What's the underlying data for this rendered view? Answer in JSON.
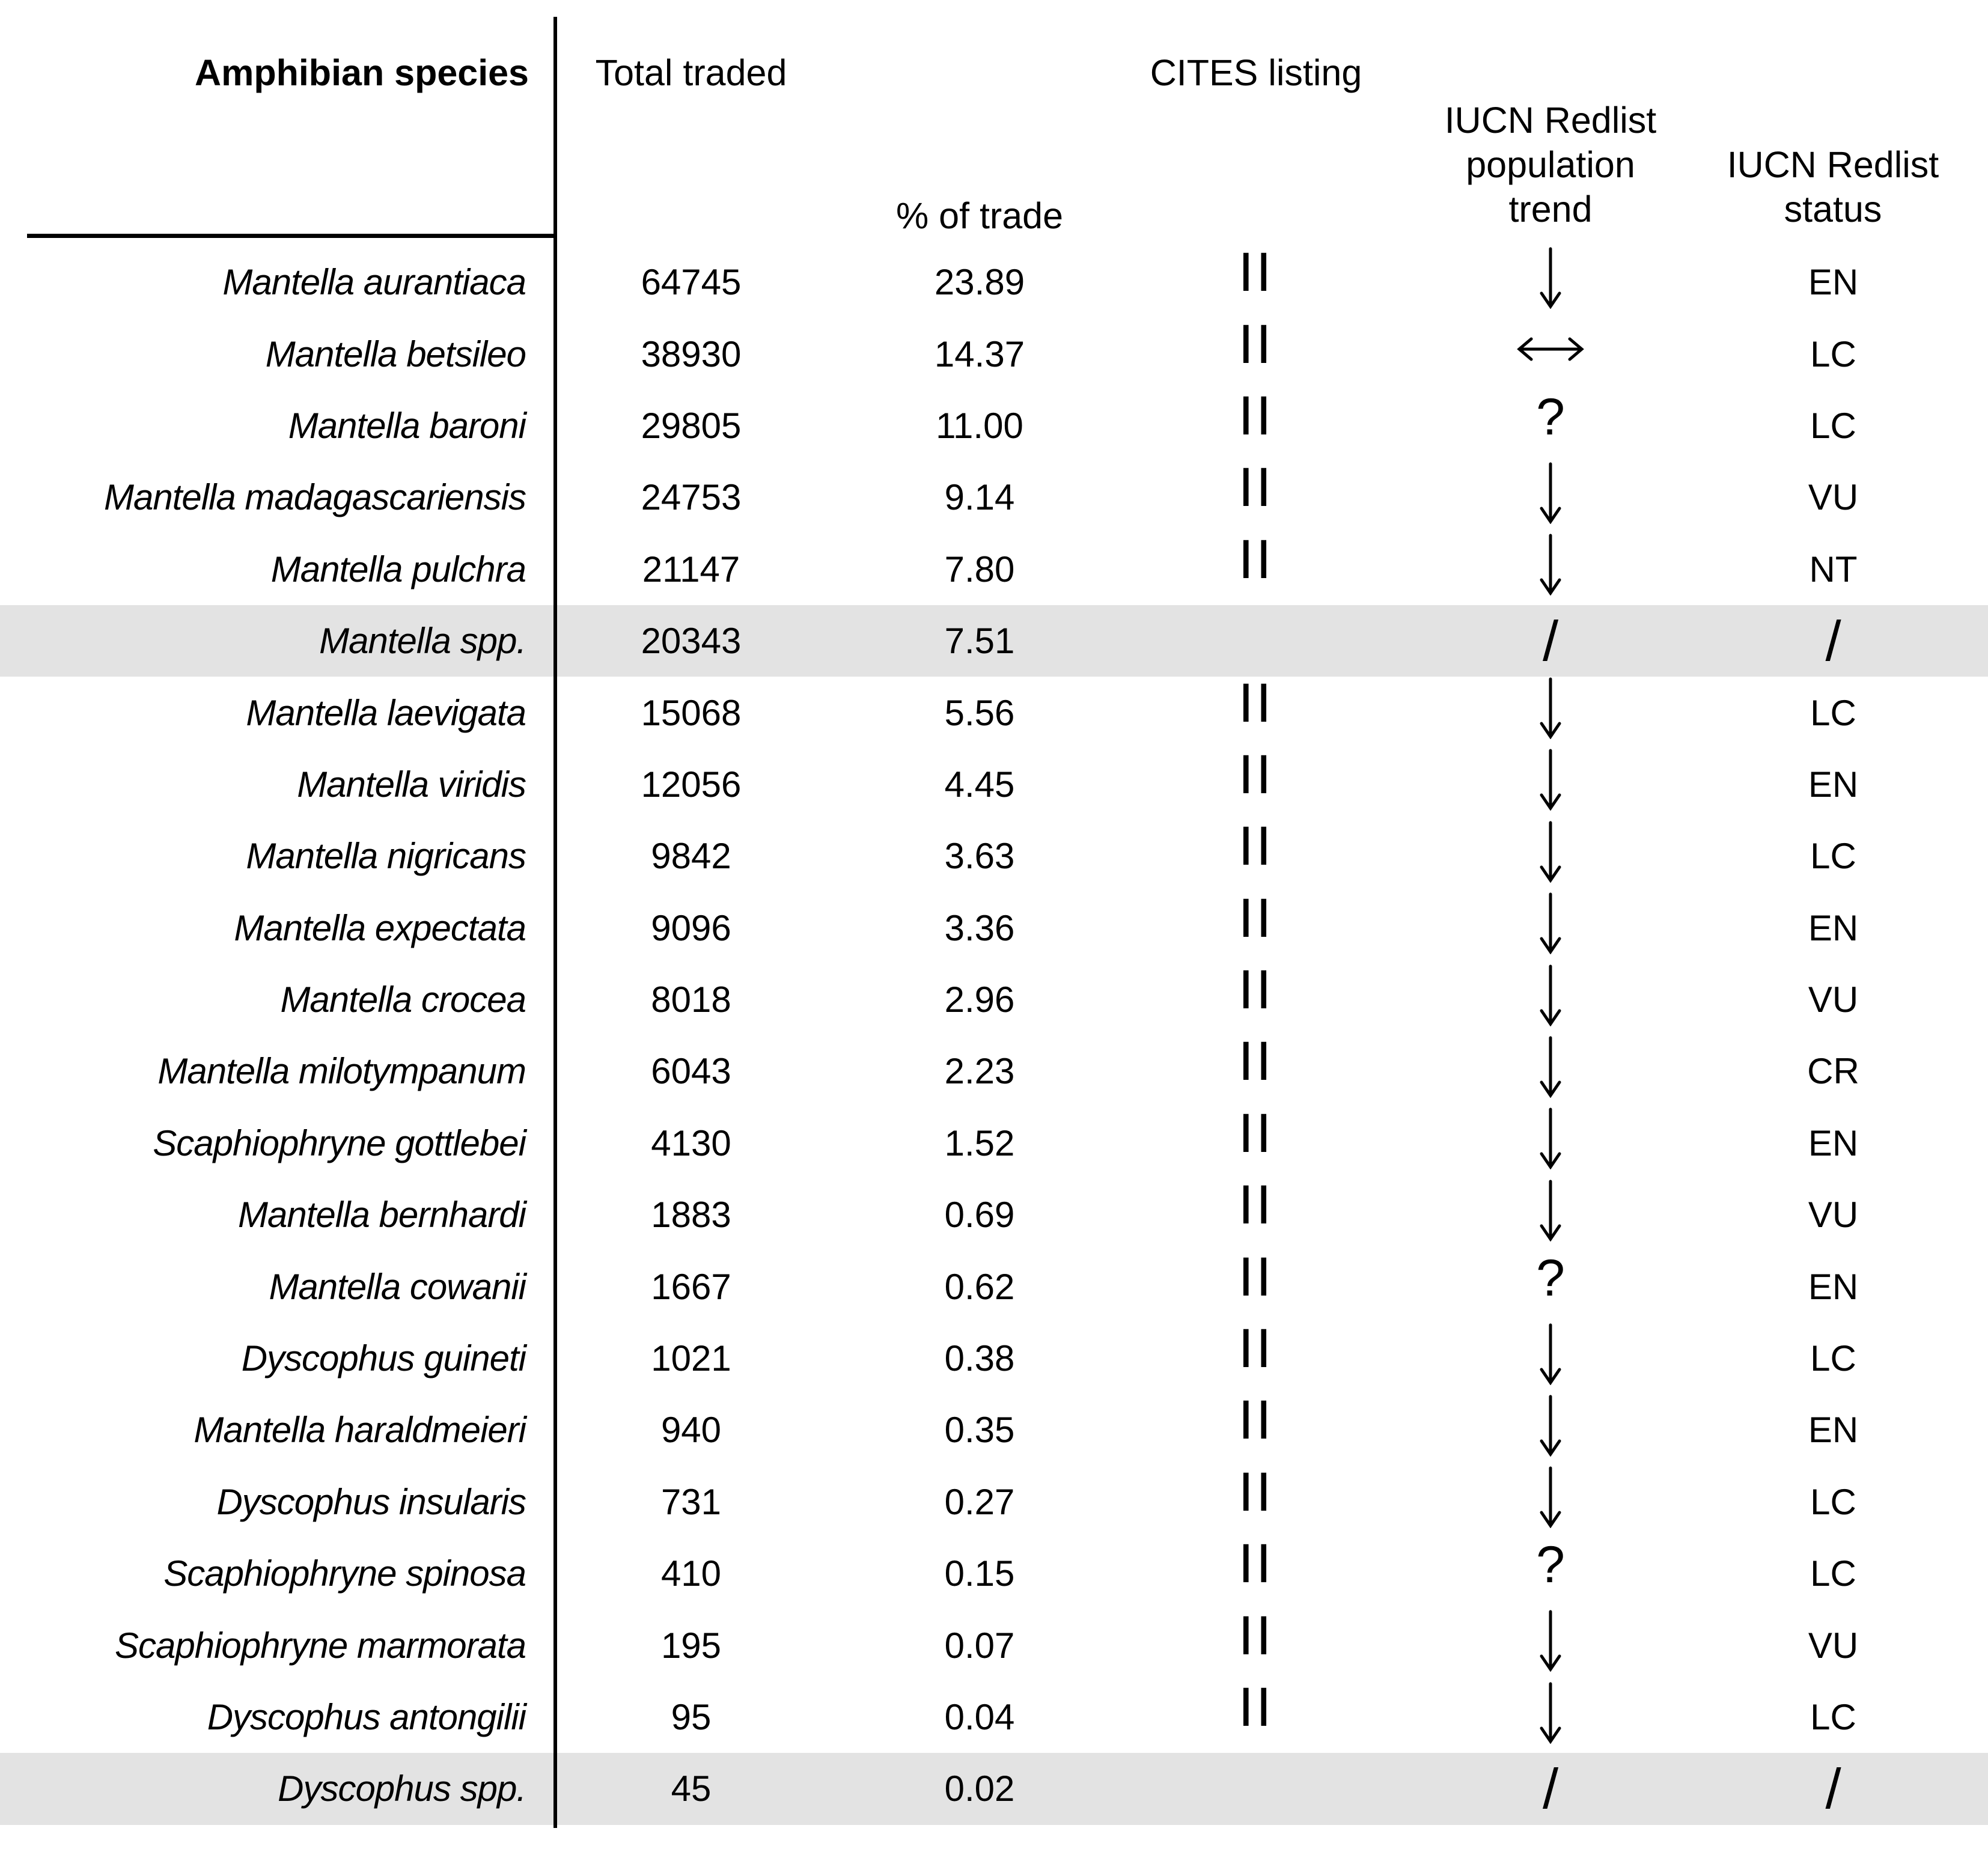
{
  "table": {
    "headers": {
      "species": "Amphibian species",
      "total_traded": "Total traded",
      "pct_of_trade": "% of trade",
      "cites": "CITES listing",
      "trend_lines": [
        "IUCN Redlist",
        "population",
        "trend"
      ],
      "status_lines": [
        "IUCN Redlist",
        "status"
      ]
    },
    "trend_glyphs": {
      "down": "↓",
      "stable": "↔",
      "unknown": "?",
      "na": "/"
    },
    "rows": [
      {
        "species": "Mantella aurantiaca",
        "total": "64745",
        "pct": "23.89",
        "cites": "II",
        "trend": "down",
        "status": "EN",
        "shaded": false
      },
      {
        "species": "Mantella betsileo",
        "total": "38930",
        "pct": "14.37",
        "cites": "II",
        "trend": "stable",
        "status": "LC",
        "shaded": false
      },
      {
        "species": "Mantella baroni",
        "total": "29805",
        "pct": "11.00",
        "cites": "II",
        "trend": "unknown",
        "status": "LC",
        "shaded": false
      },
      {
        "species": "Mantella madagascariensis",
        "total": "24753",
        "pct": "9.14",
        "cites": "II",
        "trend": "down",
        "status": "VU",
        "shaded": false
      },
      {
        "species": "Mantella pulchra",
        "total": "21147",
        "pct": "7.80",
        "cites": "II",
        "trend": "down",
        "status": "NT",
        "shaded": false
      },
      {
        "species": "Mantella spp.",
        "total": "20343",
        "pct": "7.51",
        "cites": "",
        "trend": "na",
        "status": "/",
        "shaded": true
      },
      {
        "species": "Mantella laevigata",
        "total": "15068",
        "pct": "5.56",
        "cites": "II",
        "trend": "down",
        "status": "LC",
        "shaded": false
      },
      {
        "species": "Mantella viridis",
        "total": "12056",
        "pct": "4.45",
        "cites": "II",
        "trend": "down",
        "status": "EN",
        "shaded": false
      },
      {
        "species": "Mantella nigricans",
        "total": "9842",
        "pct": "3.63",
        "cites": "II",
        "trend": "down",
        "status": "LC",
        "shaded": false
      },
      {
        "species": "Mantella expectata",
        "total": "9096",
        "pct": "3.36",
        "cites": "II",
        "trend": "down",
        "status": "EN",
        "shaded": false
      },
      {
        "species": "Mantella crocea",
        "total": "8018",
        "pct": "2.96",
        "cites": "II",
        "trend": "down",
        "status": "VU",
        "shaded": false
      },
      {
        "species": "Mantella milotympanum",
        "total": "6043",
        "pct": "2.23",
        "cites": "II",
        "trend": "down",
        "status": "CR",
        "shaded": false
      },
      {
        "species": "Scaphiophryne gottlebei",
        "total": "4130",
        "pct": "1.52",
        "cites": "II",
        "trend": "down",
        "status": "EN",
        "shaded": false
      },
      {
        "species": "Mantella bernhardi",
        "total": "1883",
        "pct": "0.69",
        "cites": "II",
        "trend": "down",
        "status": "VU",
        "shaded": false
      },
      {
        "species": "Mantella cowanii",
        "total": "1667",
        "pct": "0.62",
        "cites": "II",
        "trend": "unknown",
        "status": "EN",
        "shaded": false
      },
      {
        "species": "Dyscophus guineti",
        "total": "1021",
        "pct": "0.38",
        "cites": "II",
        "trend": "down",
        "status": "LC",
        "shaded": false
      },
      {
        "species": "Mantella haraldmeieri",
        "total": "940",
        "pct": "0.35",
        "cites": "II",
        "trend": "down",
        "status": "EN",
        "shaded": false
      },
      {
        "species": "Dyscophus insularis",
        "total": "731",
        "pct": "0.27",
        "cites": "II",
        "trend": "down",
        "status": "LC",
        "shaded": false
      },
      {
        "species": "Scaphiophryne spinosa",
        "total": "410",
        "pct": "0.15",
        "cites": "II",
        "trend": "unknown",
        "status": "LC",
        "shaded": false
      },
      {
        "species": "Scaphiophryne marmorata",
        "total": "195",
        "pct": "0.07",
        "cites": "II",
        "trend": "down",
        "status": "VU",
        "shaded": false
      },
      {
        "species": "Dyscophus antongilii",
        "total": "95",
        "pct": "0.04",
        "cites": "II",
        "trend": "down",
        "status": "LC",
        "shaded": false
      },
      {
        "species": "Dyscophus spp.",
        "total": "45",
        "pct": "0.02",
        "cites": "",
        "trend": "na",
        "status": "/",
        "shaded": true
      }
    ]
  },
  "colors": {
    "text": "#000000",
    "rule": "#000000",
    "row_shade": "#e3e3e3"
  }
}
